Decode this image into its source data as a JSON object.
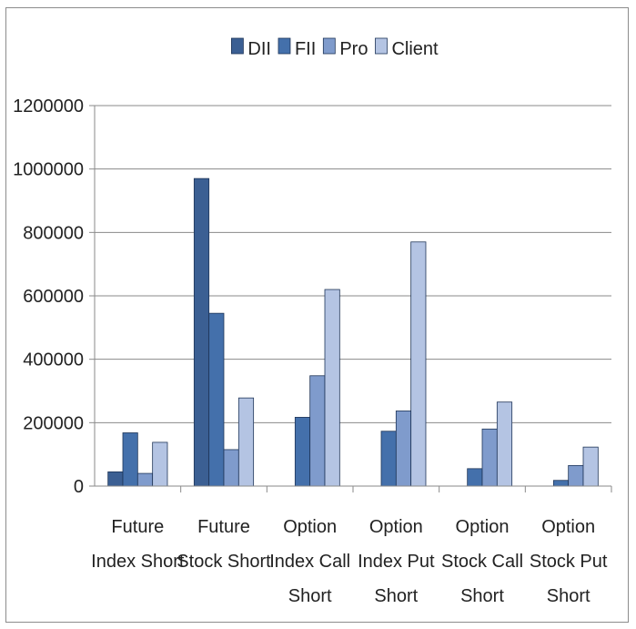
{
  "chart_data": {
    "type": "bar",
    "title": "",
    "xlabel": "",
    "ylabel": "",
    "ylim": [
      0,
      1200000
    ],
    "yticks": [
      0,
      200000,
      400000,
      600000,
      800000,
      1000000,
      1200000
    ],
    "ytick_labels": [
      "0",
      "200000",
      "400000",
      "600000",
      "800000",
      "1000000",
      "1200000"
    ],
    "grid": true,
    "legend_position": "top",
    "categories": [
      [
        "Future",
        "Index Short"
      ],
      [
        "Future",
        "Stock Short"
      ],
      [
        "Option",
        "Index Call",
        "Short"
      ],
      [
        "Option",
        "Index Put",
        "Short"
      ],
      [
        "Option",
        "Stock Call",
        "Short"
      ],
      [
        "Option",
        "Stock Put",
        "Short"
      ]
    ],
    "series": [
      {
        "name": "DII",
        "color": "#3b5f93",
        "values": [
          45000,
          970000,
          0,
          0,
          0,
          0
        ]
      },
      {
        "name": "FII",
        "color": "#4470ab",
        "values": [
          168000,
          545000,
          217000,
          173000,
          55000,
          18000
        ]
      },
      {
        "name": "Pro",
        "color": "#7f9bcc",
        "values": [
          40000,
          115000,
          348000,
          237000,
          180000,
          65000
        ]
      },
      {
        "name": "Client",
        "color": "#b4c4e3",
        "values": [
          138000,
          278000,
          620000,
          770000,
          265000,
          123000
        ]
      }
    ]
  }
}
